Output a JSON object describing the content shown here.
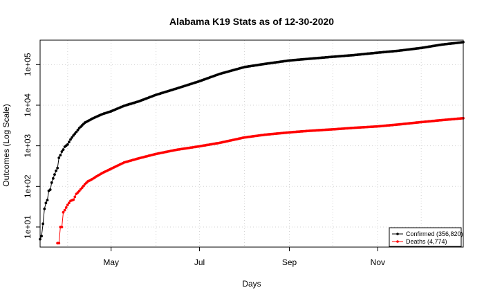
{
  "chart_data": {
    "type": "scatter",
    "title": "Alabama K19 Stats as of 12-30-2020",
    "xlabel": "Days",
    "ylabel": "Outcomes (Log Scale)",
    "y_scale": "log",
    "ylim": [
      3.2,
      400000
    ],
    "xlim": [
      "2020-03-13",
      "2020-12-30"
    ],
    "x_ticks": [
      {
        "date": "2020-05-01",
        "label": "May"
      },
      {
        "date": "2020-07-01",
        "label": "Jul"
      },
      {
        "date": "2020-09-01",
        "label": "Sep"
      },
      {
        "date": "2020-11-01",
        "label": "Nov"
      }
    ],
    "y_ticks": [
      {
        "value": 10,
        "label": "1e+01"
      },
      {
        "value": 100,
        "label": "1e+02"
      },
      {
        "value": 1000,
        "label": "1e+03"
      },
      {
        "value": 10000,
        "label": "1e+04"
      },
      {
        "value": 100000,
        "label": "1e+05"
      }
    ],
    "grid": true,
    "legend_position": "bottom-right",
    "series": [
      {
        "name": "Confirmed (356,820)",
        "color": "#000000",
        "points": [
          [
            "2020-03-13",
            5
          ],
          [
            "2020-03-14",
            6
          ],
          [
            "2020-03-15",
            12
          ],
          [
            "2020-03-16",
            28
          ],
          [
            "2020-03-17",
            39
          ],
          [
            "2020-03-18",
            46
          ],
          [
            "2020-03-19",
            78
          ],
          [
            "2020-03-20",
            83
          ],
          [
            "2020-03-21",
            124
          ],
          [
            "2020-03-22",
            157
          ],
          [
            "2020-03-23",
            196
          ],
          [
            "2020-03-24",
            242
          ],
          [
            "2020-03-25",
            283
          ],
          [
            "2020-03-26",
            506
          ],
          [
            "2020-03-27",
            587
          ],
          [
            "2020-03-28",
            720
          ],
          [
            "2020-03-29",
            806
          ],
          [
            "2020-03-30",
            947
          ],
          [
            "2020-04-01",
            1077
          ],
          [
            "2020-04-03",
            1432
          ],
          [
            "2020-04-05",
            1796
          ],
          [
            "2020-04-07",
            2197
          ],
          [
            "2020-04-09",
            2703
          ],
          [
            "2020-04-11",
            3191
          ],
          [
            "2020-04-13",
            3734
          ],
          [
            "2020-04-15",
            4075
          ],
          [
            "2020-04-18",
            4655
          ],
          [
            "2020-04-21",
            5231
          ],
          [
            "2020-04-25",
            6026
          ],
          [
            "2020-05-01",
            7068
          ],
          [
            "2020-05-10",
            9668
          ],
          [
            "2020-05-20",
            12376
          ],
          [
            "2020-06-01",
            18001
          ],
          [
            "2020-06-15",
            25615
          ],
          [
            "2020-07-01",
            38962
          ],
          [
            "2020-07-15",
            59067
          ],
          [
            "2020-08-01",
            86873
          ],
          [
            "2020-08-15",
            103851
          ],
          [
            "2020-09-01",
            126058
          ],
          [
            "2020-09-15",
            139428
          ],
          [
            "2020-10-01",
            155744
          ],
          [
            "2020-10-15",
            170655
          ],
          [
            "2020-11-01",
            196542
          ],
          [
            "2020-11-15",
            218580
          ],
          [
            "2020-12-01",
            256828
          ],
          [
            "2020-12-15",
            310017
          ],
          [
            "2020-12-30",
            356820
          ]
        ]
      },
      {
        "name": "Deaths (4,774)",
        "color": "#ff0000",
        "points": [
          [
            "2020-03-25",
            4
          ],
          [
            "2020-03-26",
            4
          ],
          [
            "2020-03-27",
            10
          ],
          [
            "2020-03-28",
            10
          ],
          [
            "2020-03-29",
            23
          ],
          [
            "2020-03-30",
            26
          ],
          [
            "2020-04-01",
            35
          ],
          [
            "2020-04-03",
            44
          ],
          [
            "2020-04-05",
            47
          ],
          [
            "2020-04-07",
            65
          ],
          [
            "2020-04-09",
            77
          ],
          [
            "2020-04-11",
            93
          ],
          [
            "2020-04-13",
            114
          ],
          [
            "2020-04-15",
            133
          ],
          [
            "2020-04-18",
            151
          ],
          [
            "2020-04-21",
            177
          ],
          [
            "2020-04-25",
            214
          ],
          [
            "2020-05-01",
            272
          ],
          [
            "2020-05-10",
            388
          ],
          [
            "2020-05-20",
            490
          ],
          [
            "2020-06-01",
            630
          ],
          [
            "2020-06-15",
            795
          ],
          [
            "2020-07-01",
            972
          ],
          [
            "2020-07-15",
            1183
          ],
          [
            "2020-08-01",
            1603
          ],
          [
            "2020-08-15",
            1871
          ],
          [
            "2020-09-01",
            2140
          ],
          [
            "2020-09-15",
            2340
          ],
          [
            "2020-10-01",
            2540
          ],
          [
            "2020-10-15",
            2760
          ],
          [
            "2020-11-01",
            3005
          ],
          [
            "2020-11-15",
            3340
          ],
          [
            "2020-12-01",
            3830
          ],
          [
            "2020-12-15",
            4280
          ],
          [
            "2020-12-30",
            4774
          ]
        ]
      }
    ]
  }
}
